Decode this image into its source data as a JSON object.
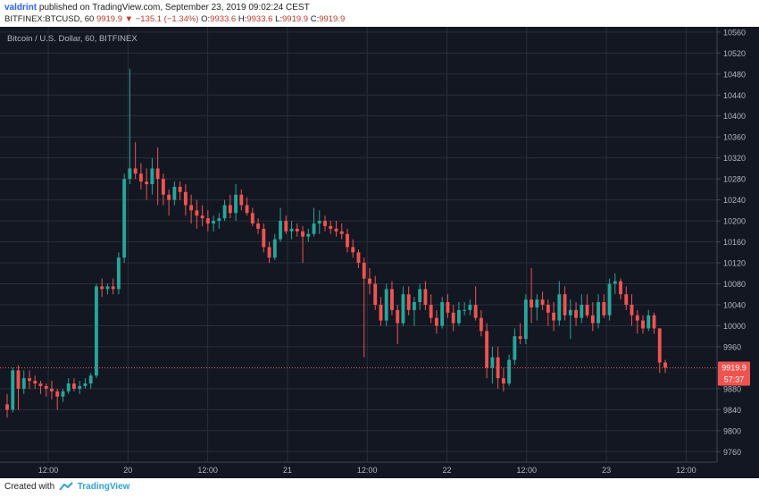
{
  "header": {
    "user": "valdrint",
    "published_text": "published on TradingView.com, September 23, 2019 09:02:24 CEST",
    "symbol": "BITFINEX:BTCUSD, 60",
    "last": "9919.9",
    "change_arrow": "▼",
    "change": "−135.1 (−1.34%)",
    "o_label": "O:",
    "o_value": "9933.6",
    "h_label": "H:",
    "h_value": "9933.6",
    "l_label": "L:",
    "l_value": "9919.9",
    "c_label": "C:",
    "c_value": "9919.9"
  },
  "footer": {
    "created_with": "Created with",
    "brand": "TradingView"
  },
  "colors": {
    "background": "#131722",
    "grid": "#2a2e39",
    "up": "#26a69a",
    "down": "#ef5350",
    "text": "#b2b5be",
    "price_line": "#ef5350"
  },
  "chart_data": {
    "type": "candlestick",
    "title": "Bitcoin / U.S. Dollar, 60, BITFINEX",
    "ylim": [
      9740,
      10570
    ],
    "y_ticks": [
      10560,
      10520,
      10480,
      10440,
      10400,
      10360,
      10320,
      10280,
      10240,
      10200,
      10160,
      10120,
      10080,
      10040,
      10000,
      9960,
      9880,
      9840,
      9800,
      9760
    ],
    "x_ticks": [
      "12:00",
      "20",
      "12:00",
      "21",
      "12:00",
      "22",
      "12:00",
      "23",
      "12:00"
    ],
    "current_price": "9919.9",
    "countdown": "57:37",
    "candles": [
      [
        9850,
        9870,
        9825,
        9840
      ],
      [
        9840,
        9920,
        9835,
        9915
      ],
      [
        9915,
        9925,
        9840,
        9880
      ],
      [
        9880,
        9915,
        9870,
        9900
      ],
      [
        9900,
        9915,
        9880,
        9895
      ],
      [
        9895,
        9905,
        9880,
        9890
      ],
      [
        9890,
        9895,
        9870,
        9885
      ],
      [
        9885,
        9890,
        9865,
        9880
      ],
      [
        9880,
        9895,
        9860,
        9875
      ],
      [
        9875,
        9880,
        9840,
        9865
      ],
      [
        9865,
        9880,
        9855,
        9875
      ],
      [
        9875,
        9900,
        9870,
        9890
      ],
      [
        9890,
        9900,
        9875,
        9880
      ],
      [
        9880,
        9895,
        9870,
        9885
      ],
      [
        9885,
        9900,
        9880,
        9890
      ],
      [
        9890,
        9910,
        9880,
        9905
      ],
      [
        9905,
        10080,
        9900,
        10075
      ],
      [
        10075,
        10090,
        10055,
        10070
      ],
      [
        10070,
        10080,
        10060,
        10075
      ],
      [
        10075,
        10090,
        10060,
        10070
      ],
      [
        10070,
        10140,
        10060,
        10130
      ],
      [
        10130,
        10290,
        10120,
        10280
      ],
      [
        10280,
        10490,
        10270,
        10300
      ],
      [
        10300,
        10350,
        10280,
        10290
      ],
      [
        10290,
        10310,
        10260,
        10275
      ],
      [
        10275,
        10300,
        10240,
        10270
      ],
      [
        10270,
        10320,
        10250,
        10300
      ],
      [
        10300,
        10340,
        10230,
        10280
      ],
      [
        10280,
        10290,
        10230,
        10250
      ],
      [
        10250,
        10260,
        10210,
        10240
      ],
      [
        10240,
        10275,
        10230,
        10265
      ],
      [
        10265,
        10275,
        10240,
        10255
      ],
      [
        10255,
        10270,
        10210,
        10230
      ],
      [
        10230,
        10250,
        10195,
        10220
      ],
      [
        10220,
        10240,
        10185,
        10210
      ],
      [
        10210,
        10230,
        10190,
        10205
      ],
      [
        10205,
        10220,
        10180,
        10195
      ],
      [
        10195,
        10210,
        10180,
        10200
      ],
      [
        10200,
        10215,
        10185,
        10205
      ],
      [
        10205,
        10240,
        10200,
        10230
      ],
      [
        10230,
        10250,
        10205,
        10215
      ],
      [
        10215,
        10270,
        10200,
        10250
      ],
      [
        10250,
        10260,
        10220,
        10230
      ],
      [
        10230,
        10245,
        10210,
        10215
      ],
      [
        10215,
        10225,
        10190,
        10195
      ],
      [
        10195,
        10205,
        10175,
        10185
      ],
      [
        10185,
        10195,
        10140,
        10150
      ],
      [
        10150,
        10160,
        10120,
        10130
      ],
      [
        10130,
        10175,
        10125,
        10165
      ],
      [
        10165,
        10225,
        10160,
        10200
      ],
      [
        10200,
        10210,
        10175,
        10180
      ],
      [
        10180,
        10200,
        10165,
        10185
      ],
      [
        10185,
        10195,
        10170,
        10180
      ],
      [
        10180,
        10190,
        10120,
        10170
      ],
      [
        10170,
        10185,
        10160,
        10175
      ],
      [
        10175,
        10225,
        10170,
        10195
      ],
      [
        10195,
        10220,
        10175,
        10200
      ],
      [
        10200,
        10210,
        10180,
        10190
      ],
      [
        10190,
        10200,
        10175,
        10185
      ],
      [
        10185,
        10200,
        10170,
        10180
      ],
      [
        10180,
        10195,
        10165,
        10175
      ],
      [
        10175,
        10185,
        10140,
        10150
      ],
      [
        10150,
        10165,
        10130,
        10140
      ],
      [
        10140,
        10145,
        10110,
        10120
      ],
      [
        10120,
        10130,
        9940,
        10090
      ],
      [
        10090,
        10110,
        10060,
        10080
      ],
      [
        10080,
        10095,
        10030,
        10040
      ],
      [
        10040,
        10055,
        10000,
        10010
      ],
      [
        10010,
        10080,
        10000,
        10070
      ],
      [
        10070,
        10085,
        10020,
        10030
      ],
      [
        10030,
        10040,
        9965,
        10005
      ],
      [
        10005,
        10075,
        10000,
        10060
      ],
      [
        10060,
        10075,
        10020,
        10030
      ],
      [
        10030,
        10055,
        10000,
        10045
      ],
      [
        10045,
        10080,
        10030,
        10070
      ],
      [
        10070,
        10085,
        10030,
        10040
      ],
      [
        10040,
        10060,
        10005,
        10015
      ],
      [
        10015,
        10030,
        9985,
        10000
      ],
      [
        10000,
        10055,
        9995,
        10045
      ],
      [
        10045,
        10060,
        10015,
        10025
      ],
      [
        10025,
        10040,
        9990,
        10005
      ],
      [
        10005,
        10045,
        10000,
        10030
      ],
      [
        10030,
        10045,
        10020,
        10030
      ],
      [
        10030,
        10050,
        10020,
        10040
      ],
      [
        10040,
        10075,
        10010,
        10015
      ],
      [
        10015,
        10030,
        9980,
        9990
      ],
      [
        9990,
        10005,
        9900,
        9920
      ],
      [
        9920,
        9960,
        9890,
        9940
      ],
      [
        9940,
        9960,
        9880,
        9900
      ],
      [
        9900,
        9920,
        9875,
        9890
      ],
      [
        9890,
        9945,
        9885,
        9935
      ],
      [
        9935,
        9995,
        9925,
        9980
      ],
      [
        9980,
        10005,
        9965,
        9975
      ],
      [
        9975,
        10060,
        9965,
        10050
      ],
      [
        10050,
        10110,
        10005,
        10035
      ],
      [
        10035,
        10060,
        10010,
        10050
      ],
      [
        10050,
        10065,
        10030,
        10040
      ],
      [
        10040,
        10050,
        10000,
        10025
      ],
      [
        10025,
        10045,
        9990,
        10010
      ],
      [
        10010,
        10085,
        10000,
        10060
      ],
      [
        10060,
        10075,
        10010,
        10020
      ],
      [
        10020,
        10050,
        9975,
        10030
      ],
      [
        10030,
        10045,
        10000,
        10015
      ],
      [
        10015,
        10060,
        10005,
        10040
      ],
      [
        10040,
        10060,
        10015,
        10020
      ],
      [
        10020,
        10045,
        9990,
        10005
      ],
      [
        10005,
        10060,
        9995,
        10045
      ],
      [
        10045,
        10060,
        10015,
        10020
      ],
      [
        10020,
        10090,
        10010,
        10080
      ],
      [
        10080,
        10100,
        10060,
        10085
      ],
      [
        10085,
        10090,
        10050,
        10060
      ],
      [
        10060,
        10075,
        10030,
        10040
      ],
      [
        10040,
        10060,
        10000,
        10020
      ],
      [
        10020,
        10030,
        9985,
        10010
      ],
      [
        10010,
        10020,
        9985,
        9995
      ],
      [
        9995,
        10030,
        9990,
        10020
      ],
      [
        10020,
        10025,
        9985,
        9995
      ],
      [
        9995,
        9995,
        9910,
        9930
      ],
      [
        9930,
        9935,
        9910,
        9920
      ]
    ]
  }
}
